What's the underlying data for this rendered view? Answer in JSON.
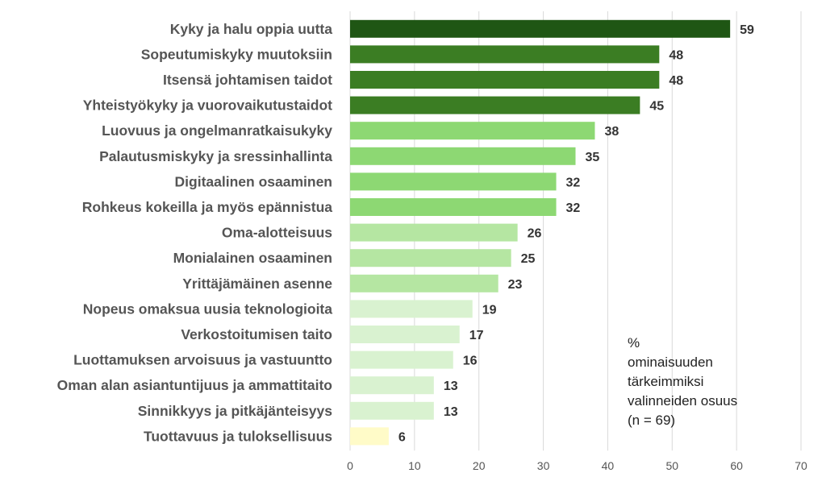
{
  "chart_data": {
    "type": "bar",
    "orientation": "horizontal",
    "categories": [
      "Kyky ja halu oppia uutta",
      "Sopeutumiskyky muutoksiin",
      "Itsensä johtamisen taidot",
      "Yhteistyökyky ja vuorovaikutustaidot",
      "Luovuus ja ongelmanratkaisukyky",
      "Palautusmiskyky ja sressinhallinta",
      "Digitaalinen osaaminen",
      "Rohkeus kokeilla ja myös epännistua",
      "Oma-alotteisuus",
      "Monialainen osaaminen",
      "Yrittäjämäinen asenne",
      "Nopeus omaksua uusia teknologioita",
      "Verkostoitumisen taito",
      "Luottamuksen arvoisuus ja vastuuntto",
      "Oman alan asiantuntijuus ja ammattitaito",
      "Sinnikkyys ja pitkäjänteisyys",
      "Tuottavuus ja tuloksellisuus"
    ],
    "values": [
      59,
      48,
      48,
      45,
      38,
      35,
      32,
      32,
      26,
      25,
      23,
      19,
      17,
      16,
      13,
      13,
      6
    ],
    "colors": [
      "#1f5614",
      "#3b7d23",
      "#3b7d23",
      "#3b7d23",
      "#8dd873",
      "#8dd873",
      "#8dd873",
      "#8dd873",
      "#b5e6a2",
      "#b5e6a2",
      "#b5e6a2",
      "#d9f2d0",
      "#d9f2d0",
      "#d9f2d0",
      "#d9f2d0",
      "#d9f2d0",
      "#fffbc8"
    ],
    "xlim": [
      0,
      70
    ],
    "xticks": [
      0,
      10,
      20,
      30,
      40,
      50,
      60,
      70
    ],
    "grid": "vertical",
    "annotation": [
      "%",
      "ominaisuuden",
      "tärkeimmiksi",
      "valinneiden osuus",
      "(n = 69)"
    ]
  }
}
